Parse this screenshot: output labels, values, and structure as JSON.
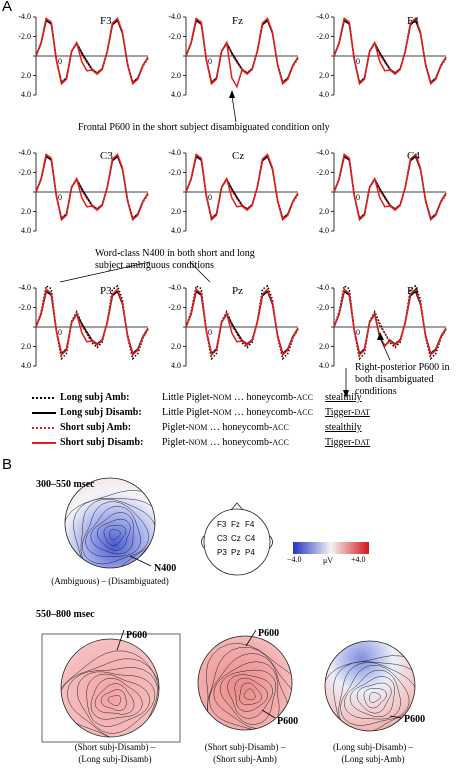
{
  "figure": {
    "panel_a_label": "A",
    "panel_b_label": "B"
  },
  "channels": [
    "F3",
    "Fz",
    "F4",
    "C3",
    "Cz",
    "C4",
    "P3",
    "Pz",
    "P4"
  ],
  "yticks": [
    "-4.0",
    "-2.0",
    "0",
    "2.0",
    "4.0"
  ],
  "annotations": {
    "frontal": "Frontal P600 in the short subject disambiguated condition only",
    "n400_line1": "Word-class N400 in both short and long",
    "n400_line2": "subject ambiguous conditions",
    "rp_line1": "Right-posterior P600 in",
    "rp_line2": "both disambiguated",
    "rp_line3": "conditions"
  },
  "legend": [
    {
      "label": "Long subj Amb:",
      "color": "#000000",
      "style": "dotted",
      "pre": "Little Piglet-",
      "case1": "NOM",
      "mid": "… honeycomb-",
      "case2": "ACC",
      "end": "stealthily",
      "end_case": ""
    },
    {
      "label": "Long subj Disamb:",
      "color": "#000000",
      "style": "solid",
      "pre": "Little Piglet-",
      "case1": "NOM",
      "mid": "… honeycomb-",
      "case2": "ACC",
      "end": "Tigger-",
      "end_case": "DAT"
    },
    {
      "label": "Short subj Amb:",
      "color": "#e02020",
      "style": "dotted",
      "pre": "Piglet-",
      "case1": "NOM",
      "mid": "… honeycomb-",
      "case2": "ACC",
      "end": "stealthily",
      "end_case": ""
    },
    {
      "label": "Short subj Disamb:",
      "color": "#e02020",
      "style": "solid",
      "pre": "Piglet-",
      "case1": "NOM",
      "mid": "… honeycomb-",
      "case2": "ACC",
      "end": "Tigger-",
      "end_case": "DAT"
    }
  ],
  "maps": {
    "window1": "300–550 msec",
    "window2": "550–800 msec",
    "n400": "N400",
    "p600": "P600",
    "scale_min": "−4.0",
    "scale_unit": "μV",
    "scale_max": "+4.0",
    "cap1": "(Ambiguous) – (Disambiguated)",
    "cap2_l1": "(Short subj-Disamb) –",
    "cap2_l2": "(Long subj-Disamb)",
    "cap3_l1": "(Short subj-Disamb) –",
    "cap3_l2": "(Short subj-Amb)",
    "cap4_l1": "(Long subj-Disamb) –",
    "cap4_l2": "(Long subj-Amb)",
    "electrodes": [
      "F3",
      "Fz",
      "F4",
      "C3",
      "Cz",
      "C4",
      "P3",
      "Pz",
      "P4"
    ]
  },
  "colors": {
    "red": "#e02020",
    "black": "#000000",
    "blue": "#3a4fd0"
  }
}
